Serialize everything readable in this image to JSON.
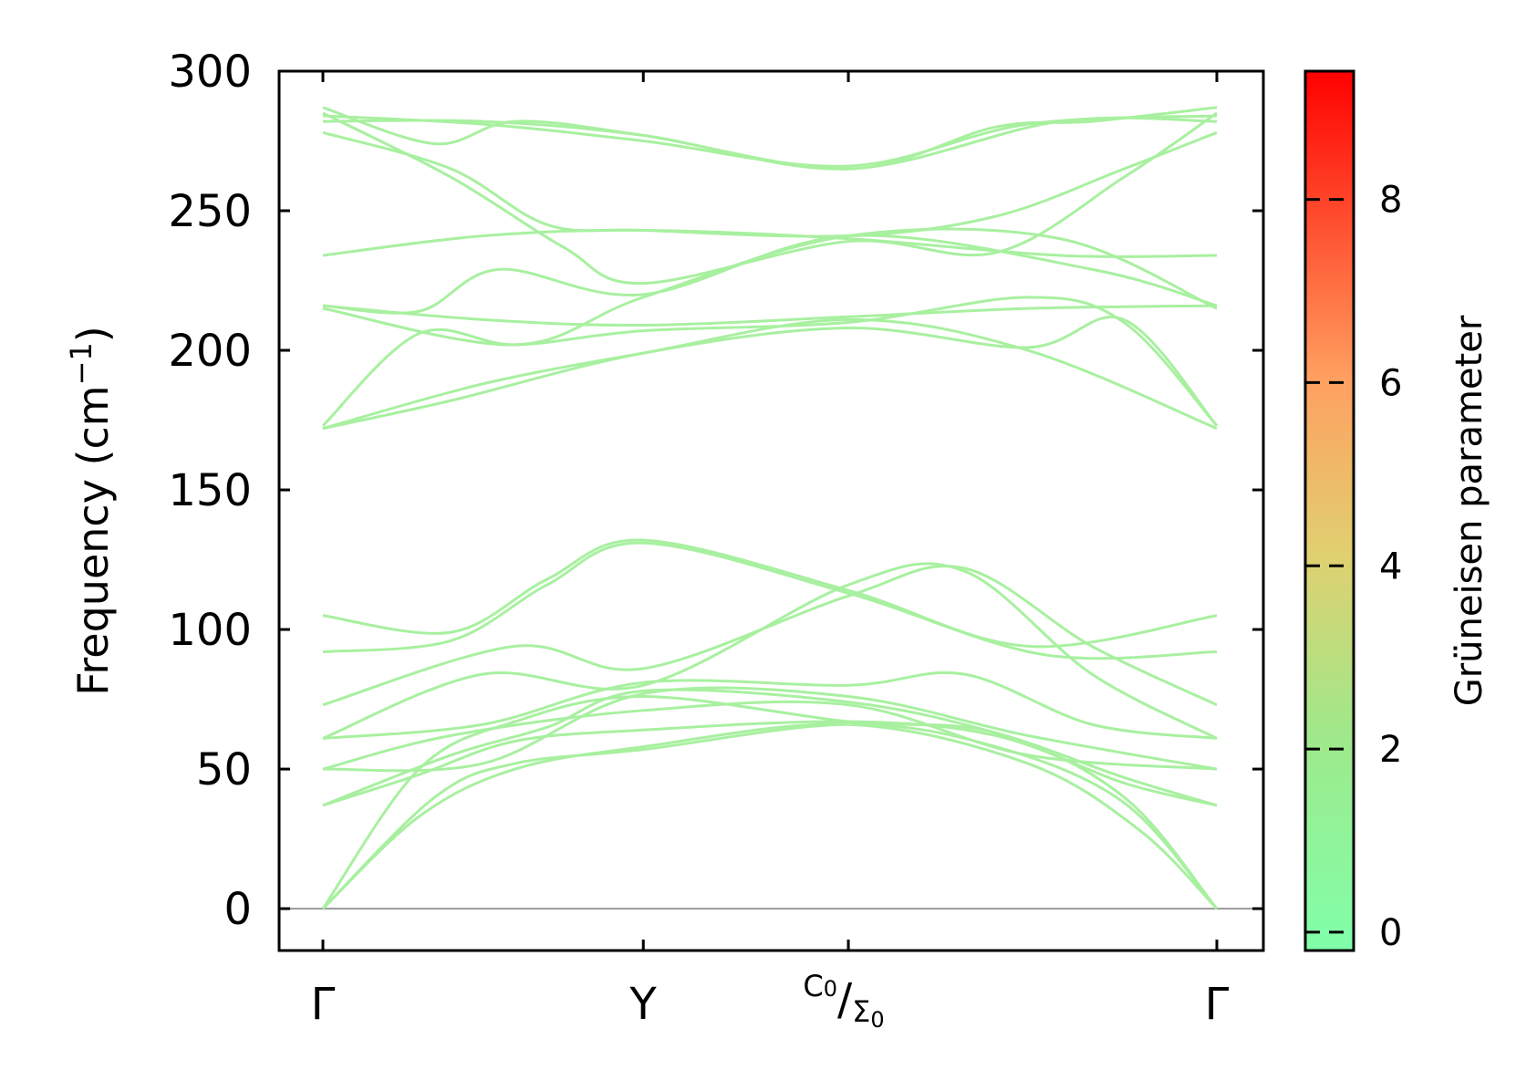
{
  "chart_data": {
    "type": "line",
    "title": "",
    "ylabel": "Frequency (cm",
    "ylabel_sup": "−1",
    "ylabel_close": ")",
    "ylim": [
      -15,
      300
    ],
    "yticks": [
      0,
      50,
      100,
      150,
      200,
      250,
      300
    ],
    "x_path_labels": [
      "Γ",
      "Y",
      "C0/Σ0",
      "Γ"
    ],
    "x_labels": {
      "gamma_start": "Γ",
      "y_point": "Y",
      "c_main": "C",
      "c_sub": "0",
      "slash": "/",
      "sigma_main": "Σ",
      "sigma_sub": "0",
      "gamma_end": "Γ"
    },
    "x_positions": [
      0,
      1.0,
      1.64,
      2.79
    ],
    "colorbar": {
      "label": "Grüneisen parameter",
      "range": [
        -0.2,
        9.4
      ],
      "ticks": [
        0,
        2,
        4,
        6,
        8
      ],
      "colors": [
        "#80ffaa",
        "#a0e88a",
        "#e0d070",
        "#ffa060",
        "#ff0000"
      ]
    },
    "band_color": "#a8f0a0",
    "series": [
      {
        "values": [
          [
            0,
            287
          ],
          [
            0.35,
            274
          ],
          [
            0.6,
            282
          ],
          [
            1.0,
            277
          ],
          [
            1.64,
            265
          ],
          [
            2.1,
            280
          ],
          [
            2.4,
            282
          ],
          [
            2.79,
            287
          ]
        ]
      },
      {
        "values": [
          [
            0,
            284
          ],
          [
            0.5,
            281
          ],
          [
            1.0,
            275
          ],
          [
            1.64,
            266
          ],
          [
            2.2,
            281
          ],
          [
            2.79,
            284
          ]
        ]
      },
      {
        "values": [
          [
            0,
            282
          ],
          [
            0.5,
            282
          ],
          [
            1.0,
            277
          ],
          [
            1.64,
            265
          ],
          [
            2.3,
            282
          ],
          [
            2.79,
            282
          ]
        ]
      },
      {
        "values": [
          [
            0,
            278
          ],
          [
            0.4,
            265
          ],
          [
            0.7,
            245
          ],
          [
            1.0,
            243
          ],
          [
            1.64,
            241
          ],
          [
            2.1,
            248
          ],
          [
            2.5,
            265
          ],
          [
            2.79,
            278
          ]
        ]
      },
      {
        "values": [
          [
            0,
            285
          ],
          [
            0.4,
            262
          ],
          [
            0.75,
            237
          ],
          [
            1.0,
            224
          ],
          [
            1.64,
            239
          ],
          [
            2.1,
            235
          ],
          [
            2.5,
            262
          ],
          [
            2.79,
            285
          ]
        ]
      },
      {
        "values": [
          [
            0,
            234
          ],
          [
            0.5,
            241
          ],
          [
            1.0,
            243
          ],
          [
            1.64,
            240
          ],
          [
            2.3,
            234
          ],
          [
            2.79,
            234
          ]
        ]
      },
      {
        "values": [
          [
            0,
            216
          ],
          [
            0.3,
            214
          ],
          [
            0.55,
            229
          ],
          [
            1.0,
            220
          ],
          [
            1.64,
            241
          ],
          [
            2.4,
            229
          ],
          [
            2.79,
            216
          ]
        ]
      },
      {
        "values": [
          [
            0,
            216
          ],
          [
            0.5,
            211
          ],
          [
            1.0,
            209
          ],
          [
            1.64,
            212
          ],
          [
            2.2,
            215
          ],
          [
            2.79,
            216
          ]
        ]
      },
      {
        "values": [
          [
            0,
            215
          ],
          [
            0.6,
            202
          ],
          [
            1.0,
            219
          ],
          [
            1.64,
            241
          ],
          [
            2.3,
            240
          ],
          [
            2.79,
            215
          ]
        ]
      },
      {
        "values": [
          [
            0,
            173
          ],
          [
            0.3,
            206
          ],
          [
            0.6,
            202
          ],
          [
            1.0,
            207
          ],
          [
            1.64,
            210
          ],
          [
            2.2,
            219
          ],
          [
            2.5,
            210
          ],
          [
            2.79,
            173
          ]
        ]
      },
      {
        "values": [
          [
            0,
            172
          ],
          [
            0.5,
            188
          ],
          [
            1.0,
            199
          ],
          [
            1.64,
            211
          ],
          [
            2.2,
            200
          ],
          [
            2.79,
            172
          ]
        ]
      },
      {
        "values": [
          [
            0,
            172
          ],
          [
            0.4,
            182
          ],
          [
            1.0,
            199
          ],
          [
            1.64,
            208
          ],
          [
            2.2,
            201
          ],
          [
            2.5,
            211
          ],
          [
            2.79,
            173
          ]
        ]
      },
      {
        "values": [
          [
            0,
            105
          ],
          [
            0.4,
            99
          ],
          [
            0.7,
            118
          ],
          [
            1.0,
            132
          ],
          [
            1.64,
            114
          ],
          [
            2.2,
            94
          ],
          [
            2.79,
            105
          ]
        ]
      },
      {
        "values": [
          [
            0,
            92
          ],
          [
            0.4,
            96
          ],
          [
            0.7,
            116
          ],
          [
            1.0,
            131
          ],
          [
            1.64,
            113
          ],
          [
            2.25,
            91
          ],
          [
            2.79,
            92
          ]
        ]
      },
      {
        "values": [
          [
            0,
            73
          ],
          [
            0.6,
            94
          ],
          [
            1.0,
            86
          ],
          [
            1.64,
            112
          ],
          [
            2.0,
            122
          ],
          [
            2.4,
            94
          ],
          [
            2.79,
            73
          ]
        ]
      },
      {
        "values": [
          [
            0,
            61
          ],
          [
            0.5,
            84
          ],
          [
            1.0,
            80
          ],
          [
            1.64,
            116
          ],
          [
            2.0,
            121
          ],
          [
            2.4,
            84
          ],
          [
            2.79,
            61
          ]
        ]
      },
      {
        "values": [
          [
            0,
            61
          ],
          [
            0.5,
            66
          ],
          [
            1.0,
            81
          ],
          [
            1.64,
            80
          ],
          [
            2.0,
            84
          ],
          [
            2.4,
            66
          ],
          [
            2.79,
            61
          ]
        ]
      },
      {
        "values": [
          [
            0,
            50
          ],
          [
            0.5,
            52
          ],
          [
            1.0,
            77
          ],
          [
            1.64,
            76
          ],
          [
            2.2,
            62
          ],
          [
            2.79,
            50
          ]
        ]
      },
      {
        "values": [
          [
            0,
            50
          ],
          [
            0.4,
            62
          ],
          [
            1.0,
            71
          ],
          [
            1.64,
            73
          ],
          [
            2.2,
            55
          ],
          [
            2.79,
            50
          ]
        ]
      },
      {
        "values": [
          [
            0,
            37
          ],
          [
            0.4,
            55
          ],
          [
            0.7,
            65
          ],
          [
            1.0,
            78
          ],
          [
            1.64,
            74
          ],
          [
            2.1,
            63
          ],
          [
            2.5,
            47
          ],
          [
            2.79,
            37
          ]
        ]
      },
      {
        "values": [
          [
            0,
            37
          ],
          [
            0.3,
            48
          ],
          [
            0.6,
            60
          ],
          [
            1.0,
            64
          ],
          [
            1.64,
            67
          ],
          [
            2.1,
            62
          ],
          [
            2.5,
            45
          ],
          [
            2.79,
            37
          ]
        ]
      },
      {
        "values": [
          [
            0,
            0
          ],
          [
            0.3,
            50
          ],
          [
            0.6,
            67
          ],
          [
            1.0,
            76
          ],
          [
            1.64,
            67
          ],
          [
            2.1,
            63
          ],
          [
            2.5,
            40
          ],
          [
            2.79,
            0
          ]
        ]
      },
      {
        "values": [
          [
            0,
            0
          ],
          [
            0.35,
            40
          ],
          [
            0.6,
            52
          ],
          [
            1.0,
            57
          ],
          [
            1.64,
            66
          ],
          [
            2.1,
            58
          ],
          [
            2.5,
            38
          ],
          [
            2.79,
            0
          ]
        ]
      },
      {
        "values": [
          [
            0,
            0
          ],
          [
            0.3,
            33
          ],
          [
            0.6,
            50
          ],
          [
            1.0,
            58
          ],
          [
            1.64,
            66
          ],
          [
            2.2,
            52
          ],
          [
            2.55,
            28
          ],
          [
            2.79,
            0
          ]
        ]
      }
    ]
  }
}
